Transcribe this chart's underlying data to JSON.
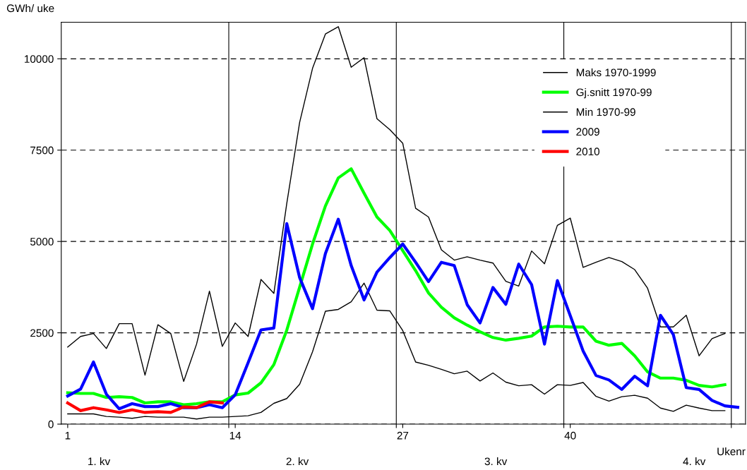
{
  "chart_data": {
    "type": "line",
    "ylabel": "GWh/ uke",
    "xlabel": "Ukenr",
    "x": [
      1,
      2,
      3,
      4,
      5,
      6,
      7,
      8,
      9,
      10,
      11,
      12,
      13,
      14,
      15,
      16,
      17,
      18,
      19,
      20,
      21,
      22,
      23,
      24,
      25,
      26,
      27,
      28,
      29,
      30,
      31,
      32,
      33,
      34,
      35,
      36,
      37,
      38,
      39,
      40,
      41,
      42,
      43,
      44,
      45,
      46,
      47,
      48,
      49,
      50,
      51,
      52,
      53
    ],
    "xlim": [
      0.5,
      53.6
    ],
    "xticks": [
      1,
      14,
      27,
      40,
      {
        "value": 13.5,
        "label": null
      },
      {
        "value": 26.5,
        "label": null
      },
      {
        "value": 39.5,
        "label": null
      },
      {
        "value": 52.5,
        "label": null
      }
    ],
    "ylim": [
      0,
      11000
    ],
    "yticks": [
      0,
      2500,
      5000,
      7500,
      10000
    ],
    "grid": "y",
    "legend": "top right",
    "marker": "none",
    "line_style": "solid",
    "ref_lines": [
      {
        "axis": "x",
        "value": 13.5,
        "color": "#000000"
      },
      {
        "axis": "x",
        "value": 26.5,
        "color": "#000000"
      },
      {
        "axis": "x",
        "value": 39.5,
        "color": "#000000"
      },
      {
        "axis": "x",
        "value": 52.5,
        "color": "#000000"
      }
    ],
    "annotations": [
      "1. kv",
      "2. kv",
      "3. kv",
      "4. kv"
    ],
    "series": [
      {
        "name": "Maks 1970-1999",
        "color": "#000000",
        "values": [
          2110,
          2400,
          2480,
          2070,
          2750,
          2750,
          1340,
          2720,
          2480,
          1170,
          2190,
          3640,
          2130,
          2770,
          2400,
          3960,
          3580,
          6040,
          8260,
          9740,
          10680,
          10880,
          9770,
          10030,
          8360,
          8060,
          7690,
          5910,
          5670,
          4770,
          4490,
          4580,
          4490,
          4410,
          3910,
          3780,
          4740,
          4390,
          5440,
          5640,
          4290,
          4430,
          4560,
          4450,
          4230,
          3720,
          2660,
          2660,
          2980,
          1870,
          2340,
          2480,
          null
        ]
      },
      {
        "name": "Gj.snitt 1970-99",
        "color": "#00ff00",
        "values": [
          860,
          840,
          840,
          730,
          750,
          730,
          580,
          610,
          610,
          530,
          560,
          610,
          610,
          800,
          850,
          1130,
          1630,
          2570,
          3750,
          4930,
          5970,
          6740,
          6990,
          6320,
          5670,
          5300,
          4750,
          4200,
          3590,
          3200,
          2910,
          2710,
          2530,
          2370,
          2300,
          2350,
          2410,
          2660,
          2680,
          2660,
          2660,
          2270,
          2160,
          2210,
          1870,
          1430,
          1260,
          1260,
          1200,
          1060,
          1020,
          1080,
          null
        ]
      },
      {
        "name": "Min 1970-99",
        "color": "#000000",
        "values": [
          280,
          280,
          280,
          210,
          190,
          160,
          210,
          190,
          190,
          190,
          140,
          190,
          190,
          210,
          230,
          320,
          570,
          700,
          1090,
          1980,
          3090,
          3140,
          3350,
          3860,
          3120,
          3100,
          2560,
          1700,
          1610,
          1500,
          1380,
          1450,
          1180,
          1400,
          1150,
          1050,
          1080,
          820,
          1080,
          1060,
          1140,
          760,
          630,
          750,
          790,
          710,
          440,
          350,
          520,
          440,
          370,
          370,
          null
        ]
      },
      {
        "name": "2009",
        "color": "#0000ff",
        "values": [
          770,
          960,
          1700,
          820,
          420,
          560,
          480,
          480,
          560,
          450,
          450,
          530,
          450,
          800,
          1680,
          2580,
          2630,
          5490,
          4010,
          3160,
          4670,
          5610,
          4340,
          3400,
          4160,
          4560,
          4930,
          4430,
          3900,
          4430,
          4340,
          3270,
          2770,
          3740,
          3280,
          4380,
          3820,
          2190,
          3930,
          2970,
          2000,
          1330,
          1210,
          950,
          1310,
          1050,
          2980,
          2450,
          1000,
          950,
          650,
          500,
          460
        ]
      },
      {
        "name": "2010",
        "color": "#ff0000",
        "values": [
          580,
          370,
          450,
          390,
          320,
          390,
          320,
          340,
          320,
          470,
          450,
          610,
          580,
          null,
          null,
          null,
          null,
          null,
          null,
          null,
          null,
          null,
          null,
          null,
          null,
          null,
          null,
          null,
          null,
          null,
          null,
          null,
          null,
          null,
          null,
          null,
          null,
          null,
          null,
          null,
          null,
          null,
          null,
          null,
          null,
          null,
          null,
          null,
          null,
          null,
          null,
          null,
          null
        ]
      }
    ]
  }
}
